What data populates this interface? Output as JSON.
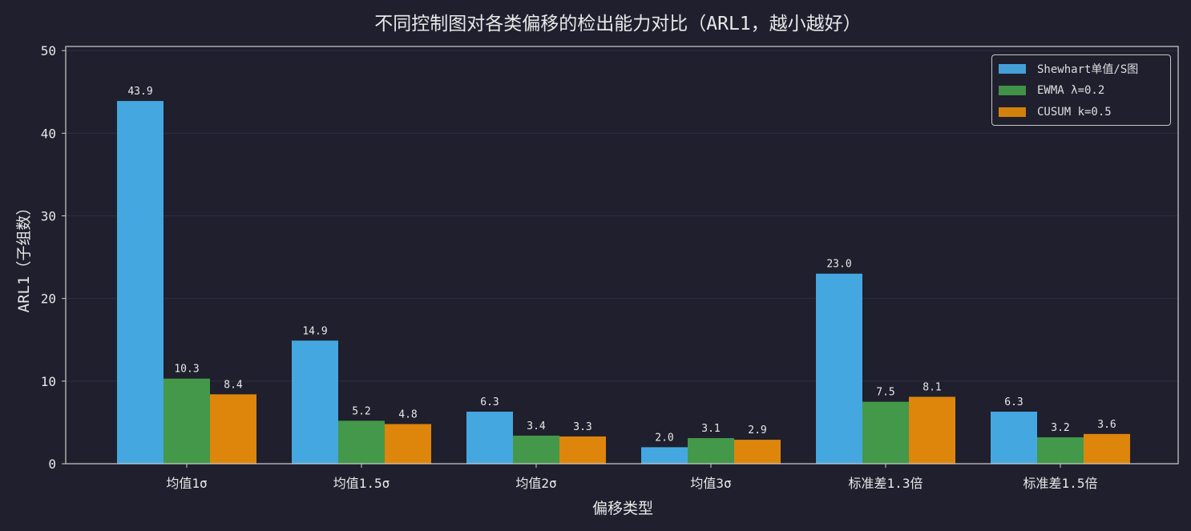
{
  "chart_data": {
    "type": "bar",
    "title": "不同控制图对各类偏移的检出能力对比（ARL1，越小越好）",
    "xlabel": "偏移类型",
    "ylabel": "ARL1（子组数）",
    "ylim": [
      0,
      50.5
    ],
    "yticks": [
      0,
      10,
      20,
      30,
      40,
      50
    ],
    "grid": true,
    "legend_position": "top-right",
    "categories": [
      "均值1σ",
      "均值1.5σ",
      "均值2σ",
      "均值3σ",
      "标准差1.3倍",
      "标准差1.5倍"
    ],
    "series": [
      {
        "name": "Shewhart单值/S图",
        "color": "#45a7e0",
        "values": [
          43.9,
          14.9,
          6.3,
          2.0,
          23.0,
          6.3
        ]
      },
      {
        "name": "EWMA λ=0.2",
        "color": "#43984a",
        "values": [
          10.3,
          5.2,
          3.4,
          3.1,
          7.5,
          3.2
        ]
      },
      {
        "name": "CUSUM k=0.5",
        "color": "#de860b",
        "values": [
          8.4,
          4.8,
          3.3,
          2.9,
          8.1,
          3.6
        ]
      }
    ]
  },
  "style": {
    "background": "#1f1f2e",
    "axis_color": "#cfcfcf",
    "text_color": "#e8e8e8",
    "grid_color": "#2e2e3f"
  }
}
